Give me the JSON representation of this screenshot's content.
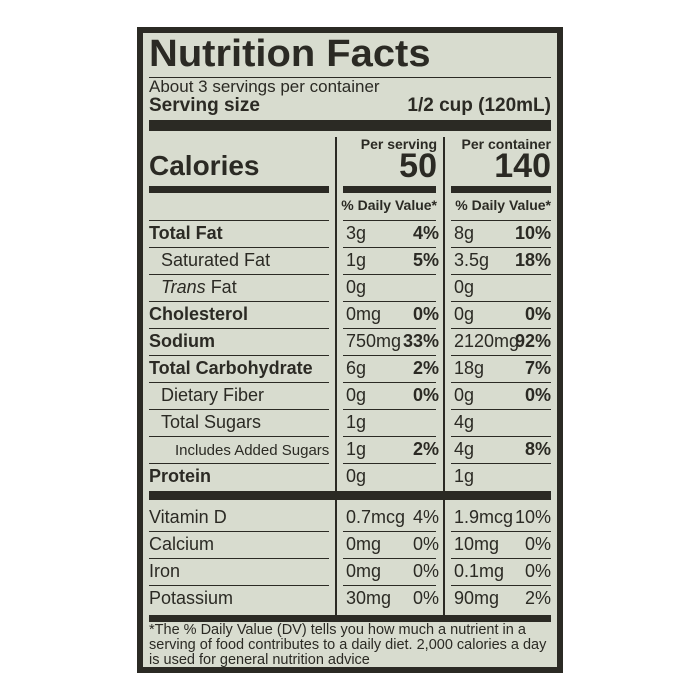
{
  "title": "Nutrition Facts",
  "servings": "About 3 servings per container",
  "serving_size_label": "Serving size",
  "serving_size_value": "1/2 cup (120mL)",
  "calories_label": "Calories",
  "per_serving_label": "Per serving",
  "per_container_label": "Per container",
  "calories_serving": "50",
  "calories_container": "140",
  "dv_header": "% Daily Value*",
  "nutrients": [
    {
      "name": "Total Fat",
      "bold": true,
      "indent": 0,
      "s_amt": "3g",
      "s_dv": "4%",
      "c_amt": "8g",
      "c_dv": "10%"
    },
    {
      "name": "Saturated Fat",
      "bold": false,
      "indent": 1,
      "s_amt": "1g",
      "s_dv": "5%",
      "c_amt": "3.5g",
      "c_dv": "18%"
    },
    {
      "name": "Trans Fat",
      "bold": false,
      "indent": 1,
      "italic_prefix": "Trans",
      "s_amt": "0g",
      "s_dv": "",
      "c_amt": "0g",
      "c_dv": ""
    },
    {
      "name": "Cholesterol",
      "bold": true,
      "indent": 0,
      "s_amt": "0mg",
      "s_dv": "0%",
      "c_amt": "0g",
      "c_dv": "0%"
    },
    {
      "name": "Sodium",
      "bold": true,
      "indent": 0,
      "s_amt": "750mg",
      "s_dv": "33%",
      "c_amt": "2120mg",
      "c_dv": "92%"
    },
    {
      "name": "Total Carbohydrate",
      "bold": true,
      "indent": 0,
      "s_amt": "6g",
      "s_dv": "2%",
      "c_amt": "18g",
      "c_dv": "7%"
    },
    {
      "name": "Dietary Fiber",
      "bold": false,
      "indent": 1,
      "s_amt": "0g",
      "s_dv": "0%",
      "c_amt": "0g",
      "c_dv": "0%"
    },
    {
      "name": "Total Sugars",
      "bold": false,
      "indent": 1,
      "s_amt": "1g",
      "s_dv": "",
      "c_amt": "4g",
      "c_dv": ""
    },
    {
      "name": "Includes Added Sugars",
      "bold": false,
      "indent": 2,
      "s_amt": "1g",
      "s_dv": "2%",
      "c_amt": "4g",
      "c_dv": "8%"
    },
    {
      "name": "Protein",
      "bold": true,
      "indent": 0,
      "s_amt": "0g",
      "s_dv": "",
      "c_amt": "1g",
      "c_dv": ""
    }
  ],
  "vitamins": [
    {
      "name": "Vitamin D",
      "s_amt": "0.7mcg",
      "s_dv": "4%",
      "c_amt": "1.9mcg",
      "c_dv": "10%"
    },
    {
      "name": "Calcium",
      "s_amt": "0mg",
      "s_dv": "0%",
      "c_amt": "10mg",
      "c_dv": "0%"
    },
    {
      "name": "Iron",
      "s_amt": "0mg",
      "s_dv": "0%",
      "c_amt": "0.1mg",
      "c_dv": "0%"
    },
    {
      "name": "Potassium",
      "s_amt": "30mg",
      "s_dv": "0%",
      "c_amt": "90mg",
      "c_dv": "2%"
    }
  ],
  "footnote": "*The % Daily Value (DV) tells you how much a nutrient in a serving of food contributes to a daily diet. 2,000 calories a day is used for general nutrition advice",
  "colors": {
    "background": "#d8dccf",
    "ink": "#2b2a24"
  }
}
